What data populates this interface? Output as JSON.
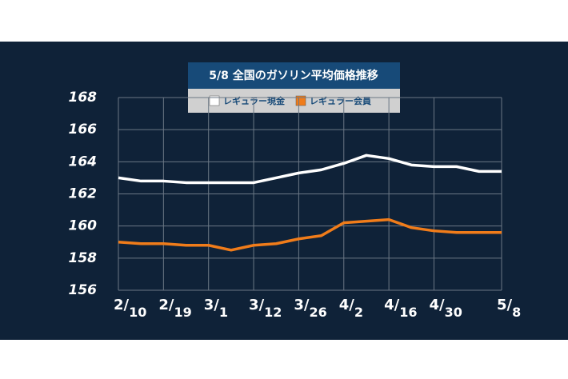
{
  "chart_data": {
    "type": "line",
    "title": "5/8 全国のガソリン平均価格推移",
    "categories": [
      "2/10",
      null,
      "2/19",
      null,
      "3/1",
      null,
      "3/12",
      null,
      "3/26",
      null,
      "4/2",
      null,
      "4/16",
      null,
      "4/30",
      null,
      null,
      "5/8"
    ],
    "series": [
      {
        "name": "レギュラー現金",
        "color": "#ffffff",
        "values": [
          163.0,
          162.8,
          162.8,
          162.7,
          162.7,
          162.7,
          162.7,
          163.0,
          163.3,
          163.5,
          163.9,
          164.4,
          164.2,
          163.8,
          163.7,
          163.7,
          163.4,
          163.4
        ]
      },
      {
        "name": "レギュラー会員",
        "color": "#f07c1a",
        "values": [
          159.0,
          158.9,
          158.9,
          158.8,
          158.8,
          158.5,
          158.8,
          158.9,
          159.2,
          159.4,
          160.2,
          160.3,
          160.4,
          159.9,
          159.7,
          159.6,
          159.6,
          159.6
        ]
      }
    ],
    "ylim": [
      156,
      168
    ],
    "yticks": [
      156,
      158,
      160,
      162,
      164,
      166,
      168
    ],
    "grid": true
  }
}
